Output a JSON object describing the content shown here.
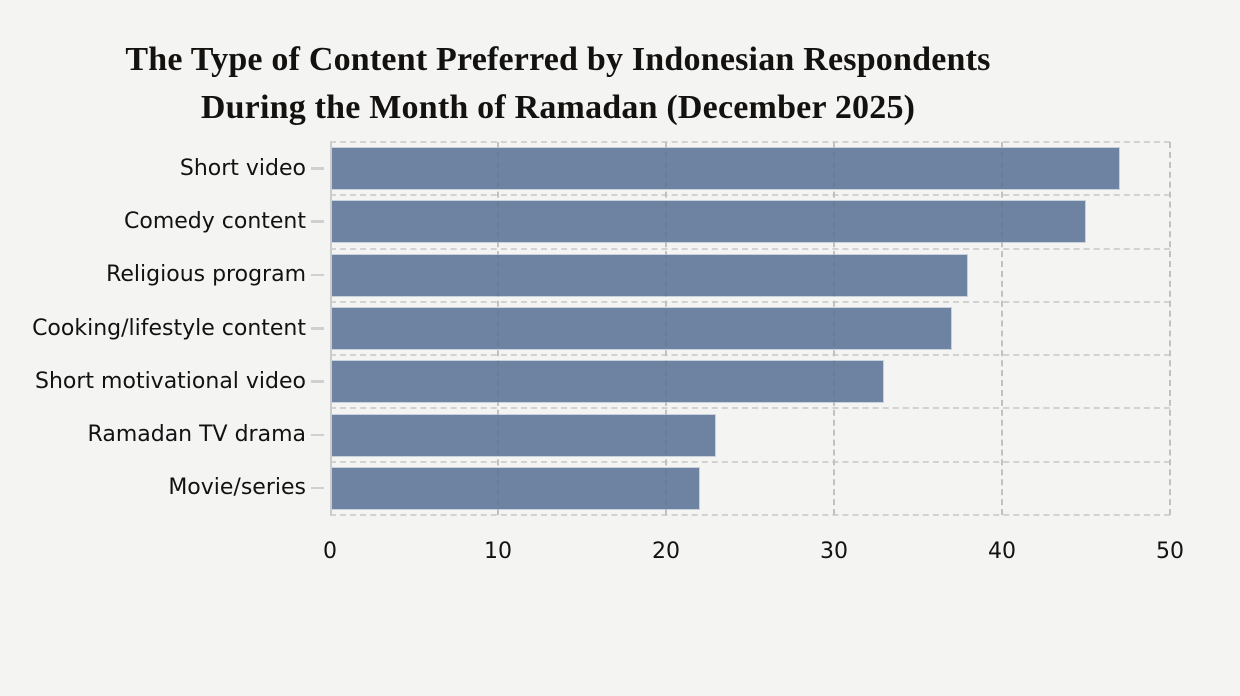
{
  "figure": {
    "background_color": "#f4f4f3",
    "title_lines": [
      "The Type of Content Preferred by Indonesian Respondents",
      "During the Month of Ramadan (December 2025)"
    ]
  },
  "chart_data": {
    "type": "bar",
    "orientation": "horizontal",
    "title": "The Type of Content Preferred by Indonesian Respondents During the Month of Ramadan (December 2025)",
    "categories": [
      "Short video",
      "Comedy content",
      "Religious program",
      "Cooking/lifestyle content",
      "Short motivational video",
      "Ramadan TV drama",
      "Movie/series"
    ],
    "values": [
      47,
      45,
      38,
      37,
      33,
      23,
      22
    ],
    "xlabel": "",
    "ylabel": "",
    "xlim": [
      0,
      50
    ],
    "xticks": [
      0,
      10,
      20,
      30,
      40,
      50
    ],
    "grid": "dashed gridlines, vertical every 10 units and horizontal at row boundaries",
    "legend": "none",
    "bar_color": "#6d83a1",
    "bar_edge_color": "#c9d1dd",
    "grid_color": "#d2d2d2",
    "axis_line_color": "#cbcbcb",
    "text_color": "#121212"
  }
}
